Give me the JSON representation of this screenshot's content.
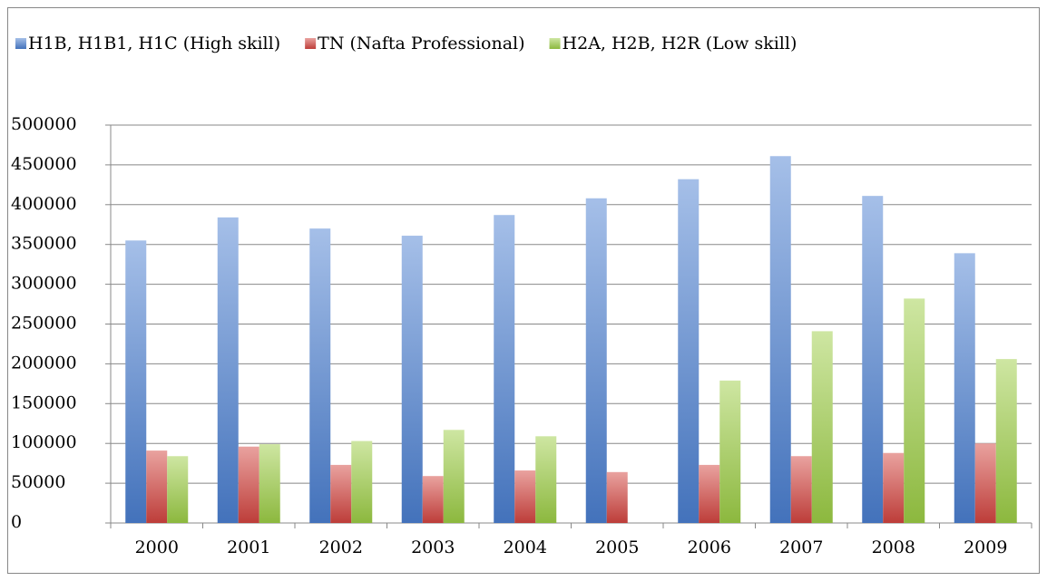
{
  "chart_data": {
    "type": "bar",
    "categories": [
      "2000",
      "2001",
      "2002",
      "2003",
      "2004",
      "2005",
      "2006",
      "2007",
      "2008",
      "2009"
    ],
    "series": [
      {
        "name": "H1B, H1B1, H1C (High skill)",
        "color": "#4a7fd0",
        "values": [
          355000,
          384000,
          370000,
          361000,
          387000,
          408000,
          432000,
          461000,
          411000,
          339000
        ]
      },
      {
        "name": "TN (Nafta Professional)",
        "color": "#d2443f",
        "values": [
          91000,
          96000,
          73000,
          59000,
          66000,
          64000,
          73000,
          84000,
          88000,
          100000
        ]
      },
      {
        "name": "H2A, H2B, H2R (Low skill)",
        "color": "#9ccc45",
        "values": [
          84000,
          99000,
          103000,
          117000,
          109000,
          null,
          179000,
          241000,
          282000,
          206000
        ]
      }
    ],
    "ylim": [
      0,
      500000
    ],
    "yticks": [
      0,
      50000,
      100000,
      150000,
      200000,
      250000,
      300000,
      350000,
      400000,
      450000,
      500000
    ],
    "grid": true,
    "legend": "top"
  }
}
